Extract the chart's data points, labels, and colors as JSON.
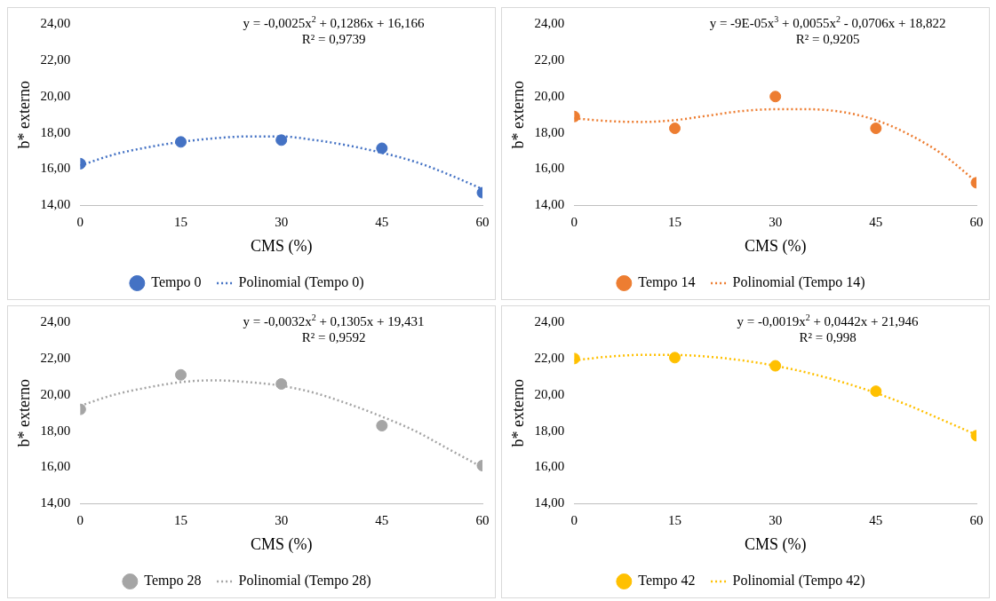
{
  "chart_data": [
    {
      "type": "scatter",
      "xlabel": "CMS (%)",
      "ylabel": "b* externo",
      "xlim": [
        0,
        60
      ],
      "xticks": [
        0,
        15,
        30,
        45,
        60
      ],
      "ylim": [
        14,
        24
      ],
      "yticks": [
        {
          "value": 14,
          "label": "14,00"
        },
        {
          "value": 16,
          "label": "16,00"
        },
        {
          "value": 18,
          "label": "18,00"
        },
        {
          "value": 20,
          "label": "20,00"
        },
        {
          "value": 22,
          "label": "22,00"
        },
        {
          "value": 24,
          "label": "24,00"
        }
      ],
      "grid": false,
      "legend": "bottom",
      "annotations": [
        "y = -0,0025x$^{2}$ + 0,1286x + 16,166",
        "R² = 0,9739"
      ],
      "series": [
        {
          "name": "Tempo 0",
          "type": "scatter",
          "marker": "circle",
          "color": "#4472c4",
          "x": [
            0,
            15,
            30,
            45,
            60
          ],
          "values": [
            16.3,
            17.5,
            17.6,
            17.15,
            14.7
          ]
        },
        {
          "name": "Polinomial (Tempo 0)",
          "type": "line",
          "marker": "none",
          "line_style": "dotted",
          "color": "#4472c4",
          "x": [
            0,
            5,
            10,
            15,
            20,
            25,
            30,
            35,
            40,
            45,
            50,
            55,
            60
          ],
          "values": [
            16.2,
            16.8,
            17.2,
            17.5,
            17.7,
            17.8,
            17.8,
            17.6,
            17.3,
            16.9,
            16.4,
            15.7,
            14.9
          ]
        }
      ]
    },
    {
      "type": "scatter",
      "xlabel": "CMS (%)",
      "ylabel": "b* externo",
      "xlim": [
        0,
        60
      ],
      "xticks": [
        0,
        15,
        30,
        45,
        60
      ],
      "ylim": [
        14,
        24
      ],
      "yticks": [
        {
          "value": 14,
          "label": "14,00"
        },
        {
          "value": 16,
          "label": "16,00"
        },
        {
          "value": 18,
          "label": "18,00"
        },
        {
          "value": 20,
          "label": "20,00"
        },
        {
          "value": 22,
          "label": "22,00"
        },
        {
          "value": 24,
          "label": "24,00"
        }
      ],
      "grid": false,
      "legend": "bottom",
      "annotations": [
        "y = -9E-05x$^{3}$ + 0,0055x$^{2}$ - 0,0706x + 18,822",
        "R² = 0,9205"
      ],
      "series": [
        {
          "name": "Tempo 14",
          "type": "scatter",
          "marker": "circle",
          "color": "#ed7d31",
          "x": [
            0,
            15,
            30,
            45,
            60
          ],
          "values": [
            18.9,
            18.25,
            20.0,
            18.25,
            15.25
          ]
        },
        {
          "name": "Polinomial (Tempo 14)",
          "type": "line",
          "marker": "none",
          "line_style": "dotted",
          "color": "#ed7d31",
          "x": [
            0,
            5,
            10,
            15,
            20,
            25,
            30,
            35,
            40,
            45,
            50,
            55,
            60
          ],
          "values": [
            18.8,
            18.65,
            18.6,
            18.7,
            18.95,
            19.2,
            19.3,
            19.3,
            19.15,
            18.7,
            17.9,
            16.8,
            15.3
          ]
        }
      ]
    },
    {
      "type": "scatter",
      "xlabel": "CMS (%)",
      "ylabel": "b* externo",
      "xlim": [
        0,
        60
      ],
      "xticks": [
        0,
        15,
        30,
        45,
        60
      ],
      "ylim": [
        14,
        24
      ],
      "yticks": [
        {
          "value": 14,
          "label": "14,00"
        },
        {
          "value": 16,
          "label": "16,00"
        },
        {
          "value": 18,
          "label": "18,00"
        },
        {
          "value": 20,
          "label": "20,00"
        },
        {
          "value": 22,
          "label": "22,00"
        },
        {
          "value": 24,
          "label": "24,00"
        }
      ],
      "grid": false,
      "legend": "bottom",
      "annotations": [
        "y = -0,0032x$^{2}$ + 0,1305x + 19,431",
        "R² = 0,9592"
      ],
      "series": [
        {
          "name": "Tempo 28",
          "type": "scatter",
          "marker": "circle",
          "color": "#a5a5a5",
          "x": [
            0,
            15,
            30,
            45,
            60
          ],
          "values": [
            19.2,
            21.1,
            20.6,
            18.3,
            16.1
          ]
        },
        {
          "name": "Polinomial (Tempo 28)",
          "type": "line",
          "marker": "none",
          "line_style": "dotted",
          "color": "#a5a5a5",
          "x": [
            0,
            5,
            10,
            15,
            20,
            25,
            30,
            35,
            40,
            45,
            50,
            55,
            60
          ],
          "values": [
            19.4,
            20.0,
            20.4,
            20.7,
            20.8,
            20.7,
            20.5,
            20.1,
            19.5,
            18.8,
            18.0,
            17.0,
            16.0
          ]
        }
      ]
    },
    {
      "type": "scatter",
      "xlabel": "CMS (%)",
      "ylabel": "b* externo",
      "xlim": [
        0,
        60
      ],
      "xticks": [
        0,
        15,
        30,
        45,
        60
      ],
      "ylim": [
        14,
        24
      ],
      "yticks": [
        {
          "value": 14,
          "label": "14,00"
        },
        {
          "value": 16,
          "label": "16,00"
        },
        {
          "value": 18,
          "label": "18,00"
        },
        {
          "value": 20,
          "label": "20,00"
        },
        {
          "value": 22,
          "label": "22,00"
        },
        {
          "value": 24,
          "label": "24,00"
        }
      ],
      "grid": false,
      "legend": "bottom",
      "annotations": [
        "y = -0,0019x$^{2}$ + 0,0442x + 21,946",
        "R² = 0,998"
      ],
      "series": [
        {
          "name": "Tempo 42",
          "type": "scatter",
          "marker": "circle",
          "color": "#ffc000",
          "x": [
            0,
            15,
            30,
            45,
            60
          ],
          "values": [
            22.0,
            22.05,
            21.6,
            20.2,
            17.75
          ]
        },
        {
          "name": "Polinomial (Tempo 42)",
          "type": "line",
          "marker": "none",
          "line_style": "dotted",
          "color": "#ffc000",
          "x": [
            0,
            5,
            10,
            15,
            20,
            25,
            30,
            35,
            40,
            45,
            50,
            55,
            60
          ],
          "values": [
            21.9,
            22.1,
            22.2,
            22.2,
            22.1,
            21.9,
            21.6,
            21.2,
            20.7,
            20.1,
            19.4,
            18.6,
            17.8
          ]
        }
      ]
    }
  ]
}
